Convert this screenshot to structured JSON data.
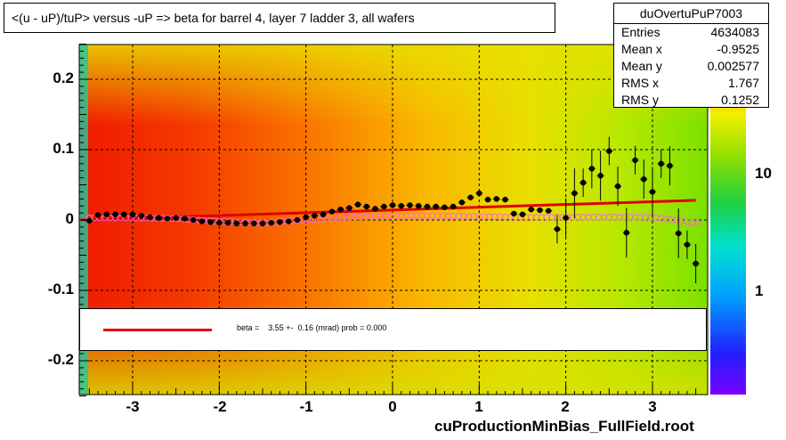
{
  "title": "<(u - uP)/tuP> versus  -uP => beta for barrel 4, layer 7 ladder 3, all wafers",
  "stats": {
    "name": "duOvertuPuP7003",
    "rows": [
      {
        "label": "Entries",
        "value": "4634083"
      },
      {
        "label": "Mean x",
        "value": "-0.9525"
      },
      {
        "label": "Mean y",
        "value": "0.002577"
      },
      {
        "label": "RMS x",
        "value": "1.767"
      },
      {
        "label": "RMS y",
        "value": "0.1252"
      }
    ]
  },
  "legend": {
    "text": "beta =    3.55 +-  0.16 (mrad) prob = 0.000",
    "line_color": "#e00000"
  },
  "footer": "cuProductionMinBias_FullField.root",
  "colors": {
    "frame": "#000000",
    "fit": "#e00000",
    "profile": "#000000",
    "open_markers": "#ff66cc"
  },
  "chart_data": {
    "type": "heatmap",
    "title": "<(u - uP)/tuP> versus  -uP => beta for barrel 4, layer 7 ladder 3, all wafers",
    "xlabel": "",
    "ylabel": "",
    "xlim": [
      -3.6,
      3.6
    ],
    "ylim": [
      -0.25,
      0.25
    ],
    "x_ticks": [
      "-3",
      "-2",
      "-1",
      "0",
      "1",
      "2",
      "3"
    ],
    "y_ticks": [
      "0.2",
      "0.1",
      "0",
      "-0.1",
      "-0.2"
    ],
    "z_ticks": [
      "10",
      "1"
    ],
    "z_scale": "log",
    "grid": true,
    "fit_line": {
      "x": [
        -3.6,
        3.5
      ],
      "y": [
        0.0,
        0.028
      ]
    },
    "profile": {
      "x": [
        -3.5,
        -3.4,
        -3.3,
        -3.2,
        -3.1,
        -3.0,
        -2.9,
        -2.8,
        -2.7,
        -2.6,
        -2.5,
        -2.4,
        -2.3,
        -2.2,
        -2.1,
        -2.0,
        -1.9,
        -1.8,
        -1.7,
        -1.6,
        -1.5,
        -1.4,
        -1.3,
        -1.2,
        -1.1,
        -1.0,
        -0.9,
        -0.8,
        -0.7,
        -0.6,
        -0.5,
        -0.4,
        -0.3,
        -0.2,
        -0.1,
        0.0,
        0.1,
        0.2,
        0.3,
        0.4,
        0.5,
        0.6,
        0.7,
        0.8,
        0.9,
        1.0,
        1.1,
        1.2,
        1.3,
        1.4,
        1.5,
        1.6,
        1.7,
        1.8,
        1.9,
        2.0,
        2.1,
        2.2,
        2.3,
        2.4,
        2.5,
        2.6,
        2.7,
        2.8,
        2.9,
        3.0,
        3.1,
        3.2,
        3.3,
        3.4,
        3.5
      ],
      "y": [
        -0.001,
        0.007,
        0.008,
        0.008,
        0.008,
        0.008,
        0.006,
        0.004,
        0.003,
        0.002,
        0.003,
        0.002,
        0.0,
        -0.002,
        -0.003,
        -0.004,
        -0.004,
        -0.005,
        -0.005,
        -0.005,
        -0.005,
        -0.004,
        -0.003,
        -0.002,
        0.0,
        0.004,
        0.006,
        0.008,
        0.012,
        0.015,
        0.017,
        0.022,
        0.019,
        0.016,
        0.019,
        0.021,
        0.02,
        0.021,
        0.02,
        0.019,
        0.019,
        0.018,
        0.019,
        0.025,
        0.032,
        0.038,
        0.029,
        0.03,
        0.029,
        0.009,
        0.008,
        0.015,
        0.014,
        0.013,
        -0.013,
        0.003,
        0.038,
        0.053,
        0.073,
        0.063,
        0.098,
        0.048,
        -0.018,
        0.085,
        0.058,
        0.04,
        0.08,
        0.077,
        -0.019,
        -0.035,
        -0.062
      ]
    },
    "open_markers": {
      "x": [
        -3.0,
        -2.5,
        -2.0,
        -1.5,
        -1.0,
        -0.5,
        0.0,
        0.5,
        1.0,
        1.5,
        2.0,
        2.5,
        3.0,
        3.5
      ],
      "y": [
        0.003,
        0.002,
        -0.002,
        -0.004,
        0.0,
        0.004,
        0.006,
        0.006,
        0.005,
        0.004,
        0.004,
        0.004,
        0.004,
        -0.004
      ]
    }
  }
}
